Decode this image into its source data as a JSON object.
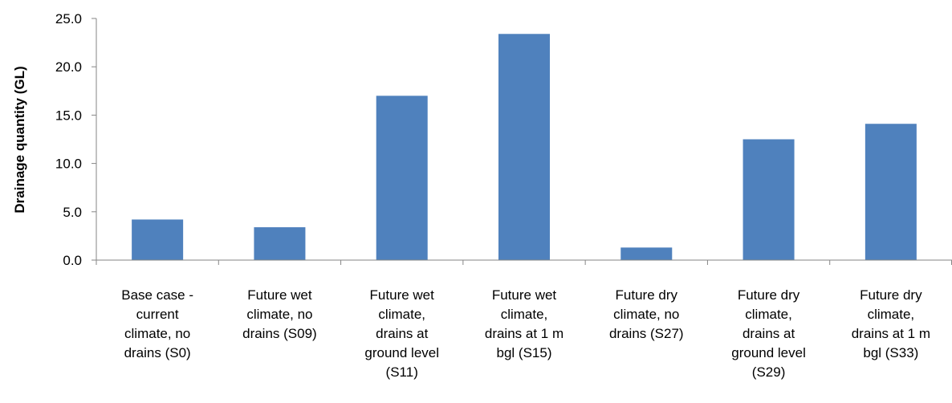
{
  "chart_data": {
    "type": "bar",
    "title": "",
    "xlabel": "",
    "ylabel": "Drainage quantity (GL)",
    "ylim": [
      0,
      25
    ],
    "yticks": [
      "0.0",
      "5.0",
      "10.0",
      "15.0",
      "20.0",
      "25.0"
    ],
    "grid": false,
    "legend": "none",
    "bar_color": "#4f81bd",
    "categories": [
      "Base case - current climate, no drains (S0)",
      "Future wet climate, no drains (S09)",
      "Future wet climate, drains at ground level (S11)",
      "Future wet climate, drains at 1 m bgl (S15)",
      "Future dry climate, no drains (S27)",
      "Future dry climate, drains at ground level (S29)",
      "Future dry climate, drains at 1 m bgl (S33)"
    ],
    "category_lines": [
      [
        "Base case -",
        "current",
        "climate, no",
        "drains (S0)"
      ],
      [
        "Future wet",
        "climate, no",
        "drains (S09)"
      ],
      [
        "Future wet",
        "climate,",
        "drains at",
        "ground level",
        "(S11)"
      ],
      [
        "Future wet",
        "climate,",
        "drains at 1 m",
        "bgl (S15)"
      ],
      [
        "Future dry",
        "climate, no",
        "drains (S27)"
      ],
      [
        "Future dry",
        "climate,",
        "drains at",
        "ground level",
        "(S29)"
      ],
      [
        "Future dry",
        "climate,",
        "drains at 1 m",
        "bgl (S33)"
      ]
    ],
    "values": [
      4.2,
      3.4,
      17.0,
      23.4,
      1.3,
      12.5,
      14.1
    ]
  }
}
